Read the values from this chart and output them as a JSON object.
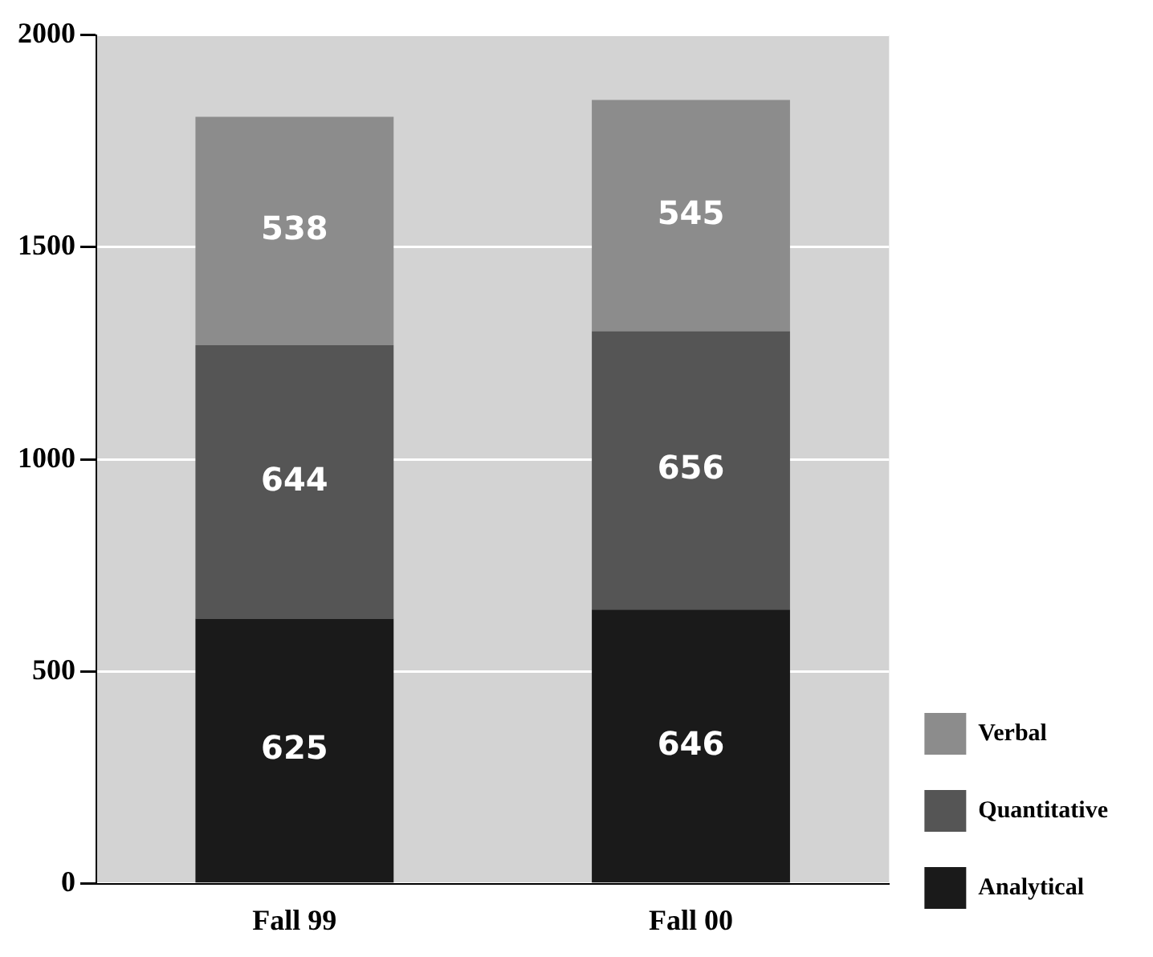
{
  "chart_data": {
    "type": "bar",
    "stacked": true,
    "categories": [
      "Fall 99",
      "Fall 00"
    ],
    "series": [
      {
        "name": "Analytical",
        "color": "#1a1a1a",
        "values": [
          625,
          646
        ]
      },
      {
        "name": "Quantitative",
        "color": "#555555",
        "values": [
          644,
          656
        ]
      },
      {
        "name": "Verbal",
        "color": "#8c8c8c",
        "values": [
          538,
          545
        ]
      }
    ],
    "ylim": [
      0,
      2000
    ],
    "yticks": [
      0,
      500,
      1000,
      1500,
      2000
    ],
    "grid": "y",
    "legend": "bottom right",
    "data_labels": true
  }
}
